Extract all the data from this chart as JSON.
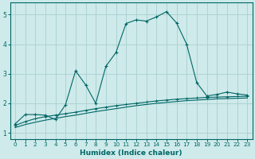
{
  "xlabel": "Humidex (Indice chaleur)",
  "bg_color": "#ceeaea",
  "grid_color": "#aacfcf",
  "line_color": "#006666",
  "xlim": [
    -0.5,
    23.5
  ],
  "ylim": [
    0.8,
    5.4
  ],
  "xticks": [
    0,
    1,
    2,
    3,
    4,
    5,
    6,
    7,
    8,
    9,
    10,
    11,
    12,
    13,
    14,
    15,
    16,
    17,
    18,
    19,
    20,
    21,
    22,
    23
  ],
  "yticks": [
    1,
    2,
    3,
    4,
    5
  ],
  "curve1_x": [
    0,
    1,
    2,
    3,
    4,
    5,
    6,
    7,
    8,
    9,
    10,
    11,
    12,
    13,
    14,
    15,
    16,
    17,
    18,
    19,
    20,
    21,
    22,
    23
  ],
  "curve1_y": [
    1.3,
    1.62,
    1.62,
    1.6,
    1.45,
    1.95,
    3.1,
    2.62,
    2.0,
    3.25,
    3.72,
    4.7,
    4.82,
    4.78,
    4.92,
    5.1,
    4.72,
    4.0,
    2.7,
    2.25,
    2.3,
    2.38,
    2.32,
    2.28
  ],
  "curve2_x": [
    0,
    1,
    2,
    3,
    4,
    5,
    6,
    7,
    8,
    9,
    10,
    11,
    12,
    13,
    14,
    15,
    16,
    17,
    18,
    19,
    20,
    21,
    22,
    23
  ],
  "curve2_y": [
    1.25,
    1.38,
    1.48,
    1.55,
    1.6,
    1.65,
    1.7,
    1.76,
    1.82,
    1.87,
    1.92,
    1.96,
    2.0,
    2.04,
    2.08,
    2.11,
    2.14,
    2.16,
    2.18,
    2.2,
    2.21,
    2.22,
    2.23,
    2.24
  ],
  "curve3_x": [
    0,
    1,
    2,
    3,
    4,
    5,
    6,
    7,
    8,
    9,
    10,
    11,
    12,
    13,
    14,
    15,
    16,
    17,
    18,
    19,
    20,
    21,
    22,
    23
  ],
  "curve3_y": [
    1.18,
    1.28,
    1.36,
    1.43,
    1.49,
    1.55,
    1.6,
    1.66,
    1.72,
    1.77,
    1.82,
    1.87,
    1.92,
    1.96,
    2.0,
    2.03,
    2.06,
    2.09,
    2.11,
    2.13,
    2.15,
    2.16,
    2.17,
    2.18
  ]
}
